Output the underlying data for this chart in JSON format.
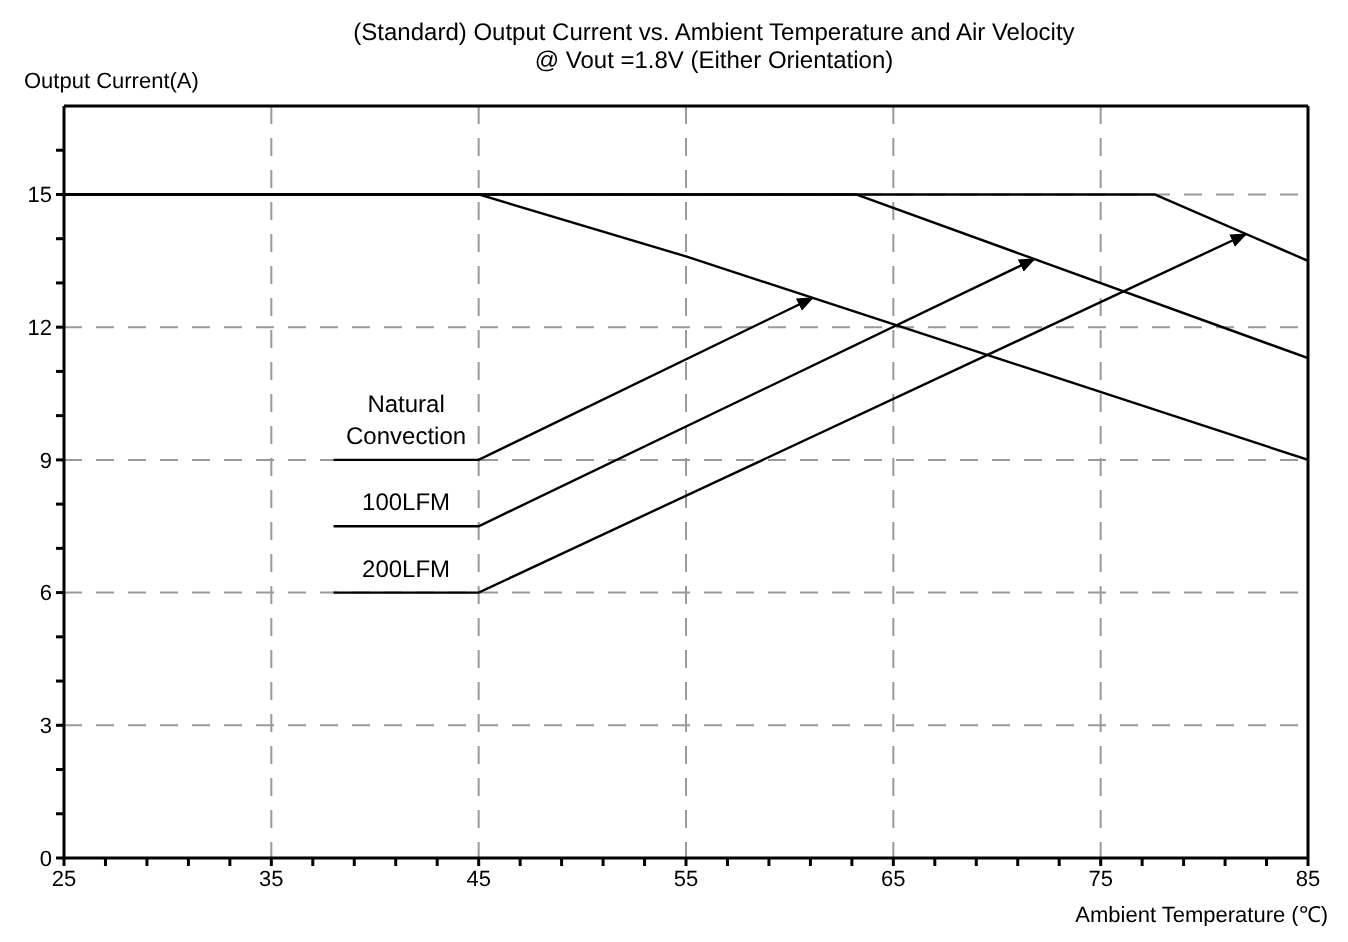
{
  "chart_data": {
    "type": "line",
    "title": "(Standard) Output Current vs. Ambient Temperature and Air Velocity",
    "subtitle": "@ Vout =1.8V (Either Orientation)",
    "xlabel": "Ambient Temperature (℃)",
    "ylabel": "Output Current(A)",
    "xlim": [
      25,
      85
    ],
    "xticks": [
      25,
      {
        "value": 27,
        "label": null
      },
      {
        "value": 29,
        "label": null
      },
      {
        "value": 31,
        "label": null
      },
      {
        "value": 33,
        "label": null
      },
      35,
      {
        "value": 37,
        "label": null
      },
      {
        "value": 39,
        "label": null
      },
      {
        "value": 41,
        "label": null
      },
      {
        "value": 43,
        "label": null
      },
      45,
      {
        "value": 47,
        "label": null
      },
      {
        "value": 49,
        "label": null
      },
      {
        "value": 51,
        "label": null
      },
      {
        "value": 53,
        "label": null
      },
      55,
      {
        "value": 57,
        "label": null
      },
      {
        "value": 59,
        "label": null
      },
      {
        "value": 61,
        "label": null
      },
      {
        "value": 63,
        "label": null
      },
      65,
      {
        "value": 67,
        "label": null
      },
      {
        "value": 69,
        "label": null
      },
      {
        "value": 71,
        "label": null
      },
      {
        "value": 73,
        "label": null
      },
      75,
      {
        "value": 77,
        "label": null
      },
      {
        "value": 79,
        "label": null
      },
      {
        "value": 81,
        "label": null
      },
      {
        "value": 83,
        "label": null
      },
      85
    ],
    "ylim": [
      0,
      17
    ],
    "yticks": [
      0,
      {
        "value": 1,
        "label": null
      },
      {
        "value": 2,
        "label": null
      },
      3,
      {
        "value": 4,
        "label": null
      },
      {
        "value": 5,
        "label": null
      },
      6,
      {
        "value": 7,
        "label": null
      },
      {
        "value": 8,
        "label": null
      },
      9,
      {
        "value": 10,
        "label": null
      },
      {
        "value": 11,
        "label": null
      },
      12,
      {
        "value": 13,
        "label": null
      },
      {
        "value": 14,
        "label": null
      },
      15,
      {
        "value": 16,
        "label": null
      }
    ],
    "grid": true,
    "marker": "none",
    "line_style": "solid",
    "annotations": [
      {
        "text": "Natural Convection",
        "x": 61.1,
        "y": 12.66
      },
      {
        "text": "100LFM",
        "x": 71.8,
        "y": 13.54
      },
      {
        "text": "200LFM",
        "x": 82,
        "y": 14.1
      }
    ],
    "series": [
      {
        "color": "#000000",
        "x": [
          25,
          45,
          55,
          85
        ],
        "values": [
          15,
          15,
          13.6,
          9
        ]
      },
      {
        "color": "#000000",
        "x": [
          25,
          63.2,
          85
        ],
        "values": [
          15,
          15,
          11.3
        ]
      },
      {
        "color": "#000000",
        "x": [
          25,
          77.6,
          85
        ],
        "values": [
          15,
          15,
          13.5
        ]
      }
    ]
  }
}
